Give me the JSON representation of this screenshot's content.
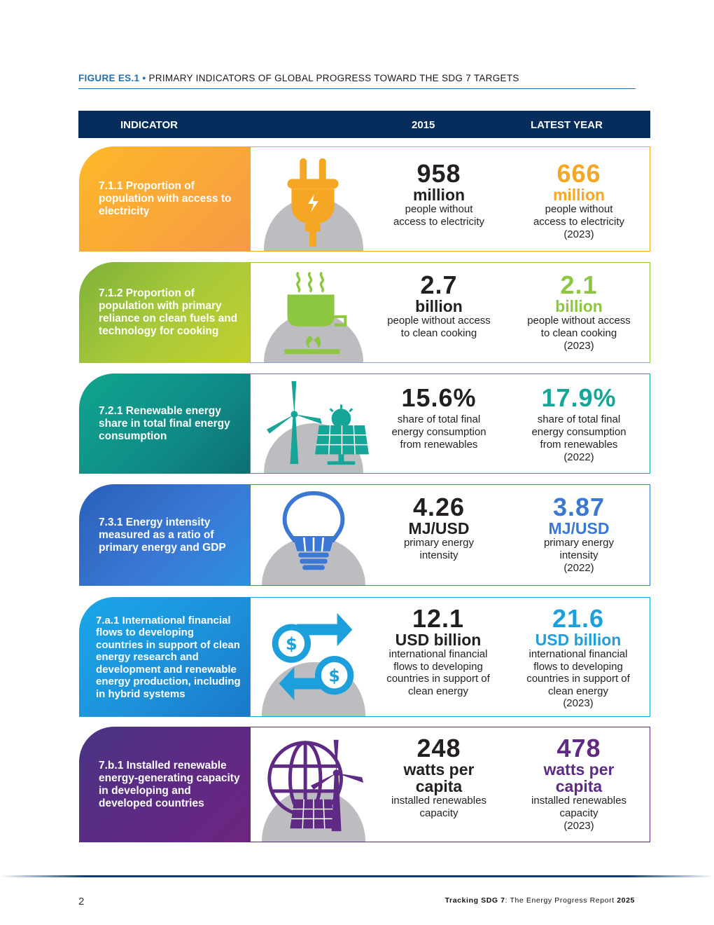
{
  "figure": {
    "label": "FIGURE ES.1",
    "bullet": "•",
    "title": "PRIMARY INDICATORS OF GLOBAL PROGRESS TOWARD THE SDG 7 TARGETS"
  },
  "header": {
    "indicator": "INDICATOR",
    "year_2015": "2015",
    "latest": "LATEST YEAR"
  },
  "colors": {
    "header_bg": "#062d5b",
    "icon_grey": "#bdbcc0"
  },
  "rows": [
    {
      "indicator": "7.1.1 Proportion of population with access to electricity",
      "icon": "electric-plug-icon",
      "accent": "#f5a623",
      "v2015": {
        "value": "958",
        "unit": "million",
        "desc": [
          "people without",
          "access to electricity"
        ]
      },
      "latest": {
        "value": "666",
        "unit": "million",
        "desc": [
          "people without",
          "access to electricity",
          "(2023)"
        ]
      }
    },
    {
      "indicator": "7.1.2 Proportion of population with primary reliance on clean fuels and technology for cooking",
      "icon": "cooking-pot-icon",
      "accent": "#8dc63f",
      "v2015": {
        "value": "2.7",
        "unit": "billion",
        "desc": [
          "people without access",
          "to clean cooking"
        ]
      },
      "latest": {
        "value": "2.1",
        "unit": "billion",
        "desc": [
          "people without access",
          "to clean cooking",
          "(2023)"
        ]
      }
    },
    {
      "indicator": "7.2.1 Renewable energy share in total final energy consumption",
      "icon": "wind-solar-icon",
      "accent": "#16a596",
      "v2015": {
        "value": "15.6%",
        "unit": "",
        "desc": [
          "share of total final",
          "energy consumption",
          "from renewables"
        ]
      },
      "latest": {
        "value": "17.9%",
        "unit": "",
        "desc": [
          "share of total final",
          "energy consumption",
          "from renewables",
          "(2022)"
        ]
      }
    },
    {
      "indicator": "7.3.1 Energy intensity measured as a ratio of primary energy and GDP",
      "icon": "light-bulb-icon",
      "accent": "#3a78d4",
      "v2015": {
        "value": "4.26",
        "unit": "MJ/USD",
        "desc": [
          "primary energy",
          "intensity"
        ]
      },
      "latest": {
        "value": "3.87",
        "unit": "MJ/USD",
        "desc": [
          "primary energy",
          "intensity",
          "(2022)"
        ]
      }
    },
    {
      "indicator": "7.a.1 International financial flows to developing countries in support of clean energy research and development and renewable energy production, including in hybrid systems",
      "icon": "money-flow-icon",
      "accent": "#1d9fdc",
      "v2015": {
        "value": "12.1",
        "unit": "USD billion",
        "desc": [
          "international financial",
          "flows to developing",
          "countries in support of",
          "clean energy"
        ]
      },
      "latest": {
        "value": "21.6",
        "unit": "USD billion",
        "desc": [
          "international financial",
          "flows to developing",
          "countries in support of",
          "clean energy",
          "(2023)"
        ]
      }
    },
    {
      "indicator": "7.b.1 Installed renewable energy-generating capacity in developing and developed countries",
      "icon": "globe-renewables-icon",
      "accent": "#5e2a84",
      "v2015": {
        "value": "248",
        "unit": "watts per capita",
        "desc": [
          "installed renewables",
          "capacity"
        ]
      },
      "latest": {
        "value": "478",
        "unit": "watts per capita",
        "desc": [
          "installed renewables",
          "capacity",
          "(2023)"
        ]
      }
    }
  ],
  "footer": {
    "page_number": "2",
    "running_prefix": "Tracking SDG 7",
    "running_middle": ": The Energy Progress Report ",
    "running_year": "2025"
  }
}
